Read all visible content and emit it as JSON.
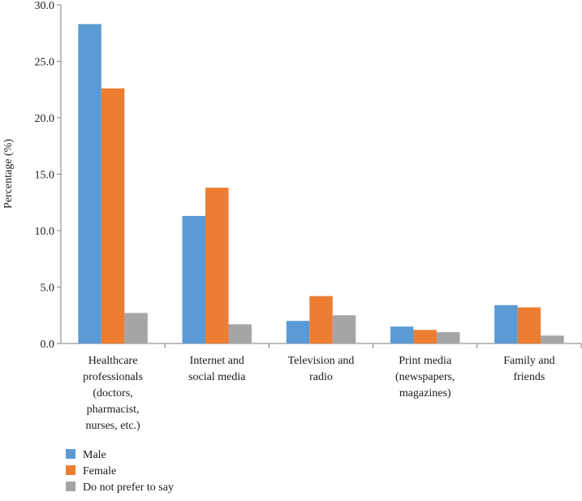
{
  "chart_data": {
    "type": "bar",
    "title": "",
    "xlabel": "",
    "ylabel": "Percentage (%)",
    "ylim": [
      0,
      30
    ],
    "yticks": [
      "0.0",
      "5.0",
      "10.0",
      "15.0",
      "20.0",
      "25.0",
      "30.0"
    ],
    "ytick_values": [
      0,
      5,
      10,
      15,
      20,
      25,
      30
    ],
    "categories": [
      [
        "Healthcare",
        "professionals",
        "(doctors,",
        "pharmacist,",
        "nurses, etc.)"
      ],
      [
        "Internet and",
        "social media"
      ],
      [
        "Television and",
        "radio"
      ],
      [
        "Print media",
        "(newspapers,",
        "magazines)"
      ],
      [
        "Family and",
        "friends"
      ]
    ],
    "series": [
      {
        "name": "Male",
        "color": "#5b9bd5",
        "values": [
          28.3,
          11.3,
          2.0,
          1.5,
          3.4
        ]
      },
      {
        "name": "Female",
        "color": "#ed7d31",
        "values": [
          22.6,
          13.8,
          4.2,
          1.2,
          3.2
        ]
      },
      {
        "name": "Do not prefer to say",
        "color": "#a5a5a5",
        "values": [
          2.7,
          1.7,
          2.5,
          1.0,
          0.7
        ]
      }
    ],
    "grid": false,
    "legend_position": "bottom-left"
  }
}
